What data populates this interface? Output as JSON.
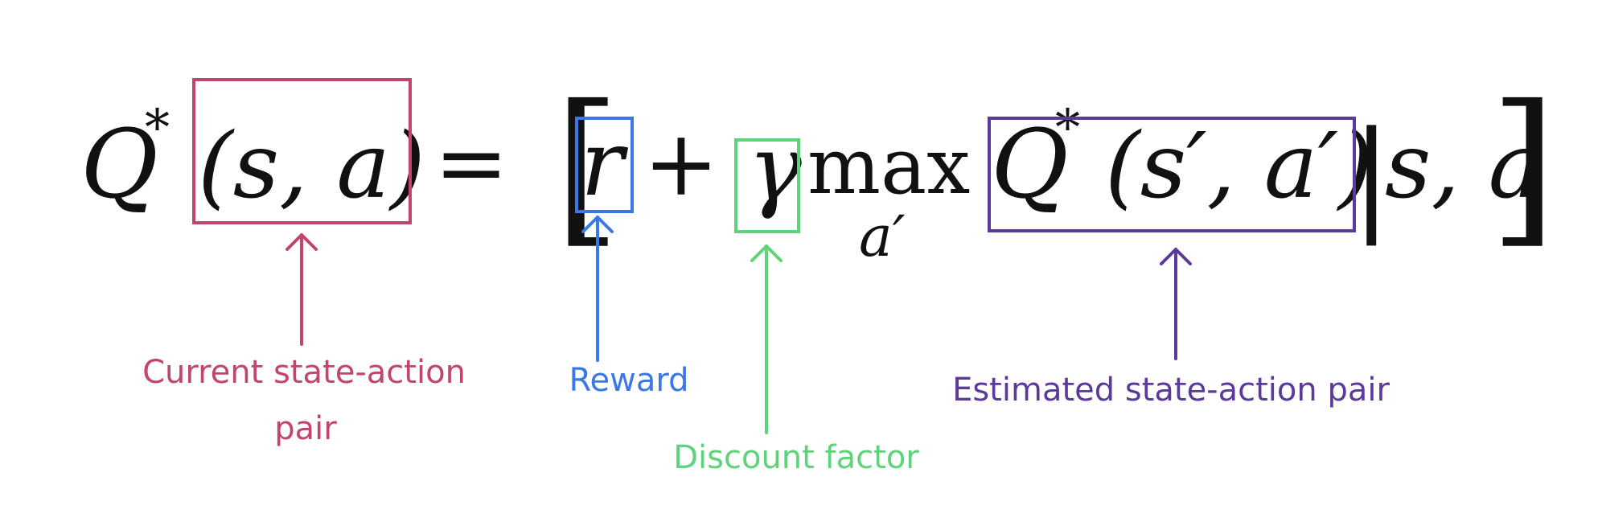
{
  "equation": {
    "lhs_symbol": "Q",
    "star": "*",
    "lhs_args": "(s, a)",
    "equals": "=",
    "open_bracket": "[",
    "reward_symbol": "r",
    "plus": "+",
    "gamma_symbol": "γ",
    "max_op": "max",
    "max_sub": "a′",
    "q_symbol": "Q",
    "q_star": "*",
    "q_args": "(s′, a′)",
    "cond_bar": "|",
    "cond_args": "s, a",
    "close_bracket": "]"
  },
  "annotations": {
    "current_pair": {
      "line1": "Current state-action",
      "line2": "pair",
      "color": "#c2456e"
    },
    "reward": {
      "text": "Reward",
      "color": "#3b78e7"
    },
    "discount": {
      "text": "Discount factor",
      "color": "#5fd37a"
    },
    "estimated_pair": {
      "text": "Estimated state-action pair",
      "color": "#5b3a9b"
    }
  }
}
